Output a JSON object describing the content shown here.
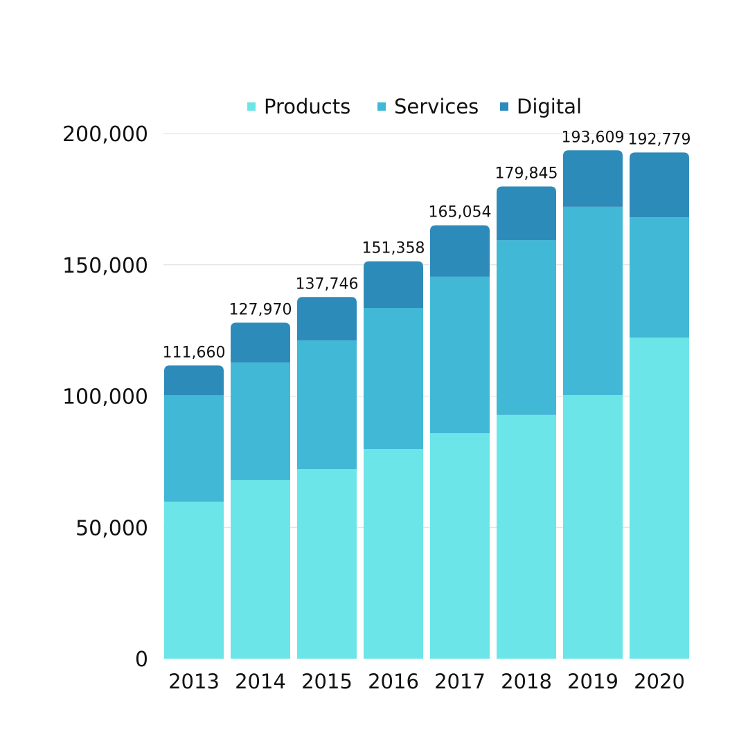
{
  "chart_data": {
    "type": "bar",
    "stacked": true,
    "title": "",
    "xlabel": "",
    "ylabel": "",
    "ylim": [
      0,
      200000
    ],
    "yticks": [
      0,
      50000,
      100000,
      150000,
      200000
    ],
    "ytick_labels": [
      "0",
      "50,000",
      "100,000",
      "150,000",
      "200,000"
    ],
    "grid": true,
    "legend_position": "top",
    "categories": [
      "2013",
      "2014",
      "2015",
      "2016",
      "2017",
      "2018",
      "2019",
      "2020"
    ],
    "series": [
      {
        "name": "Products",
        "color": "#6ce5e8",
        "values": [
          59800,
          68000,
          72200,
          79800,
          85900,
          92800,
          100400,
          122300
        ]
      },
      {
        "name": "Services",
        "color": "#41b8d5",
        "values": [
          40600,
          44800,
          49000,
          53800,
          59600,
          66600,
          71700,
          45800
        ]
      },
      {
        "name": "Digital",
        "color": "#2d8bba",
        "values": [
          11260,
          15170,
          16546,
          17758,
          19554,
          20445,
          21509,
          24679
        ]
      }
    ],
    "totals": [
      111660,
      127970,
      137746,
      151358,
      165054,
      179845,
      193609,
      192779
    ],
    "total_labels": [
      "111,660",
      "127,970",
      "137,746",
      "151,358",
      "165,054",
      "179,845",
      "193,609",
      "192,779"
    ]
  }
}
